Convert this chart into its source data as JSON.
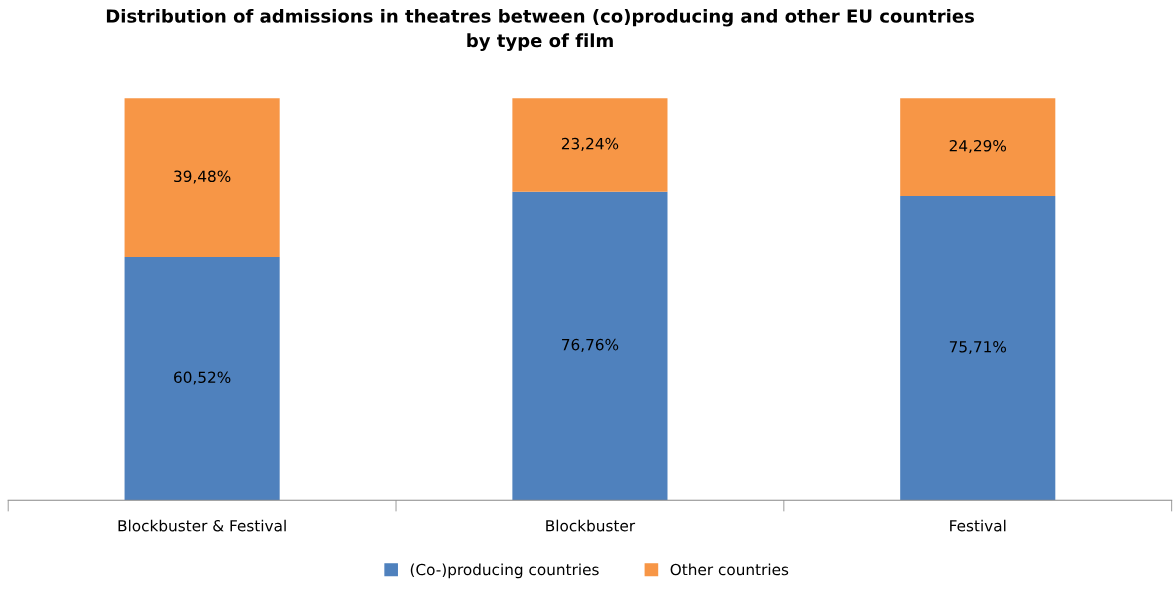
{
  "chart_data": {
    "type": "bar",
    "stacked": true,
    "title": "Distribution of admissions in theatres between (co)producing and other EU countries\nby type of film",
    "categories": [
      "Blockbuster & Festival",
      "Blockbuster",
      "Festival"
    ],
    "series": [
      {
        "name": "(Co-)producing countries",
        "color": "#4f81bd",
        "values": [
          60.52,
          76.76,
          75.71
        ],
        "value_labels": [
          "60,52%",
          "76,76%",
          "75,71%"
        ]
      },
      {
        "name": "Other countries",
        "color": "#f79646",
        "values": [
          39.48,
          23.24,
          24.29
        ],
        "value_labels": [
          "39,48%",
          "23,24%",
          "24,29%"
        ]
      }
    ],
    "tick_labels": "x",
    "grid": false,
    "legend": "bottom"
  }
}
